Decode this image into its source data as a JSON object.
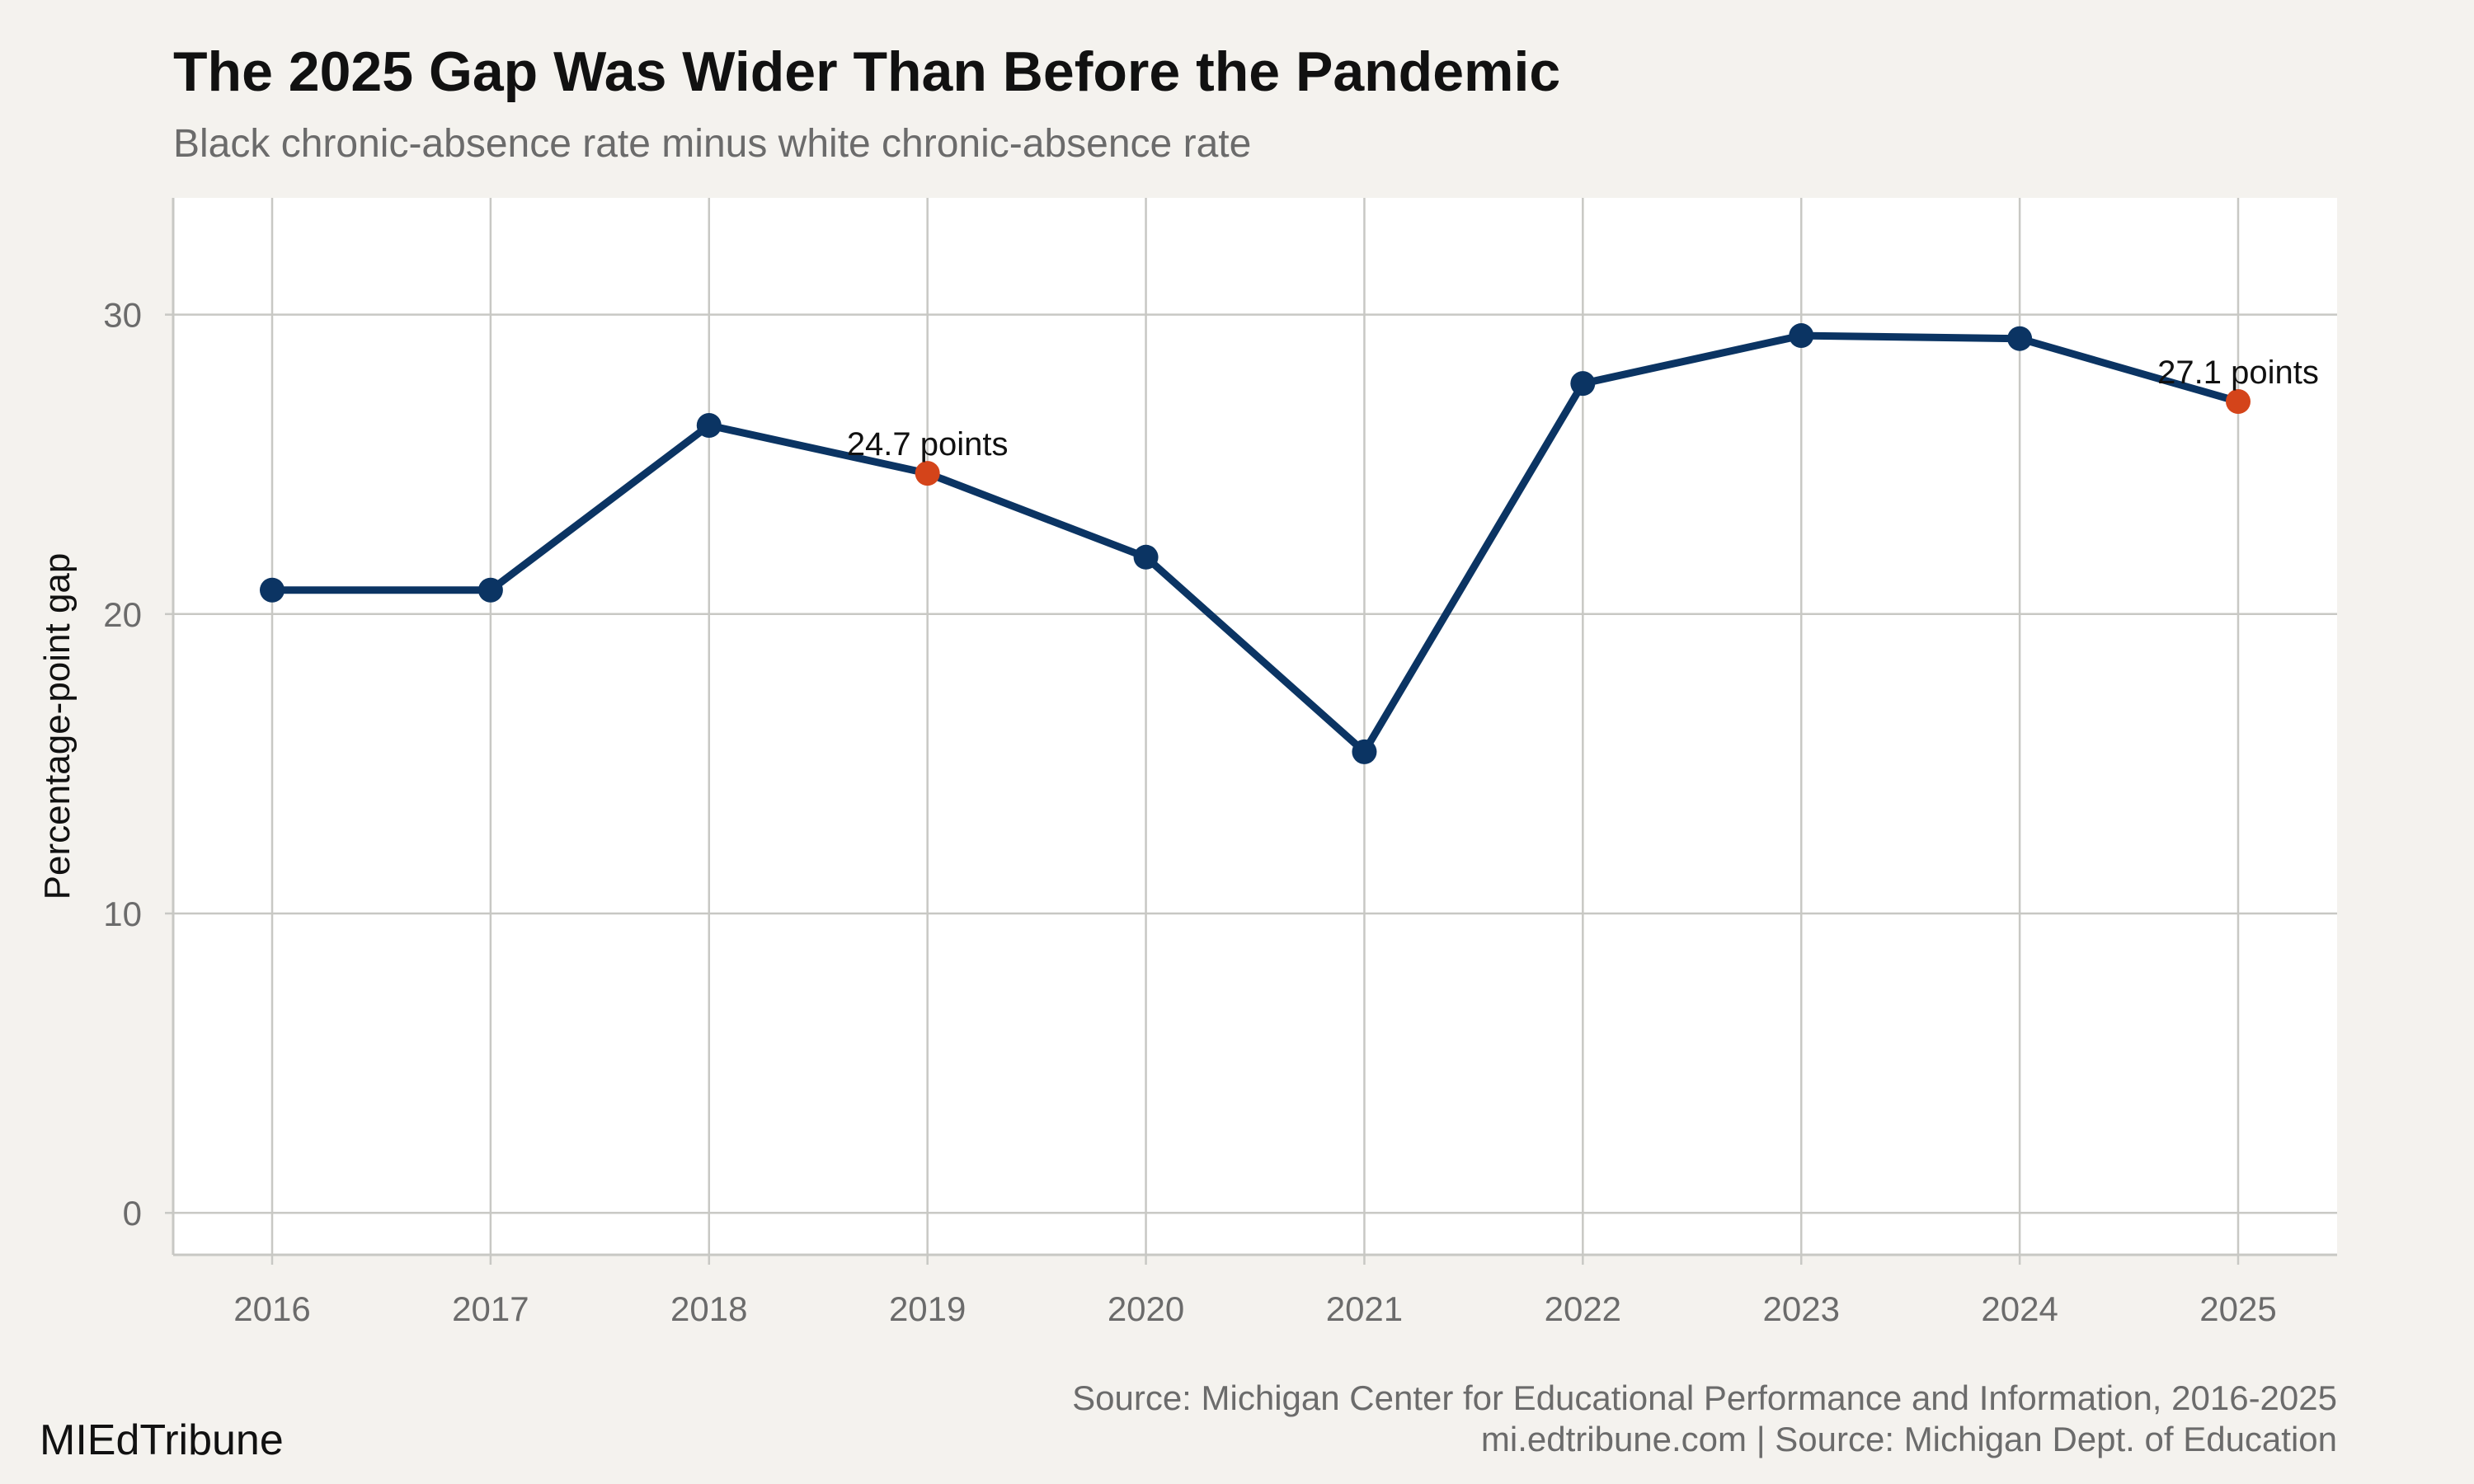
{
  "chart_data": {
    "type": "line",
    "title": "The 2025 Gap Was Wider Than Before the Pandemic",
    "subtitle": "Black chronic-absence rate minus white chronic-absence rate",
    "xlabel": "",
    "ylabel": "Percentage-point gap",
    "x": [
      "2016",
      "2017",
      "2018",
      "2019",
      "2020",
      "2021",
      "2022",
      "2023",
      "2024",
      "2025"
    ],
    "series": [
      {
        "values": [
          20.8,
          20.8,
          26.3,
          24.7,
          21.9,
          15.4,
          27.7,
          29.3,
          29.2,
          27.1
        ]
      }
    ],
    "ylim": [
      -1.4,
      33.9
    ],
    "yticks": [
      0,
      10,
      20,
      30
    ],
    "grid": true,
    "highlighted": [
      {
        "x": "2019",
        "label": "24.7 points"
      },
      {
        "x": "2025",
        "label": "27.1 points"
      }
    ],
    "colors": {
      "line": "#0b3463",
      "highlight": "#d4441a",
      "panel": "#ffffff",
      "background": "#f4f2ee",
      "grid": "#c8c8c4"
    },
    "caption_lines": [
      "Source: Michigan Center for Educational Performance and Information, 2016-2025",
      "mi.edtribune.com | Source: Michigan Dept. of Education"
    ],
    "brand": "MIEdTribune"
  }
}
